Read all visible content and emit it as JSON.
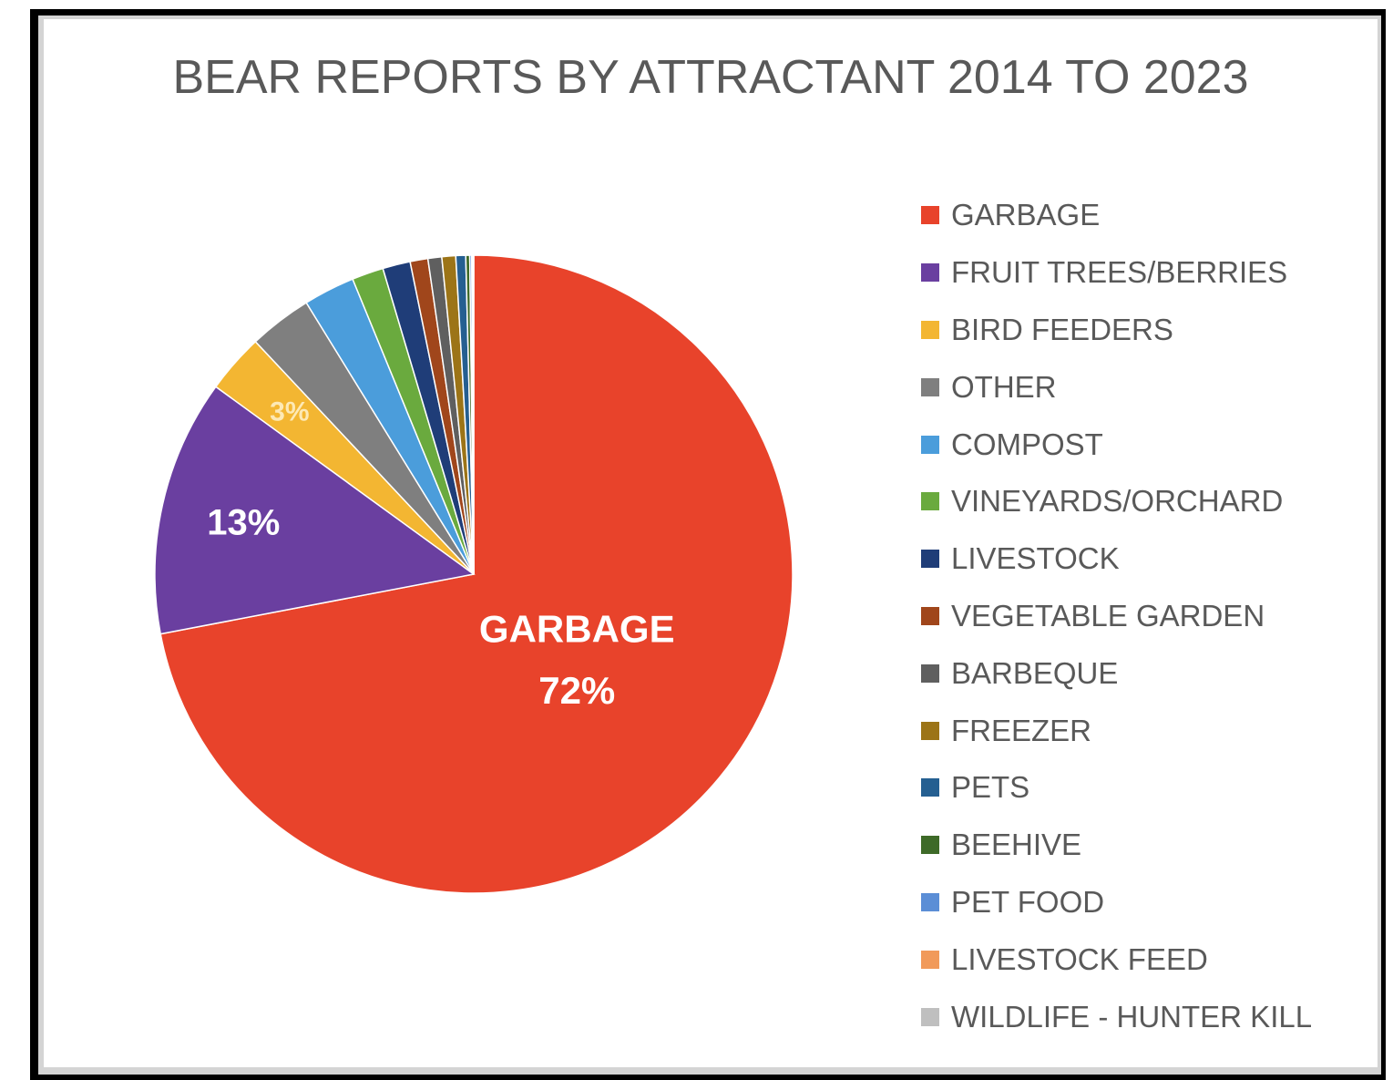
{
  "chart_data": {
    "type": "pie",
    "title": "BEAR REPORTS BY ATTRACTANT 2014 TO 2023",
    "unit": "%",
    "slices": [
      {
        "label": "GARBAGE",
        "value": 72,
        "color": "#e8432b"
      },
      {
        "label": "FRUIT TREES/BERRIES",
        "value": 13,
        "color": "#6a3fa0"
      },
      {
        "label": "BIRD FEEDERS",
        "value": 3,
        "color": "#f3b632"
      },
      {
        "label": "OTHER",
        "value": 3.2,
        "color": "#7f7f7f"
      },
      {
        "label": "COMPOST",
        "value": 2.6,
        "color": "#4b9ddb"
      },
      {
        "label": "VINEYARDS/ORCHARD",
        "value": 1.6,
        "color": "#6aaa3e"
      },
      {
        "label": "LIVESTOCK",
        "value": 1.4,
        "color": "#1f3d78"
      },
      {
        "label": "VEGETABLE GARDEN",
        "value": 0.9,
        "color": "#a0461b"
      },
      {
        "label": "BARBEQUE",
        "value": 0.7,
        "color": "#5f5f5f"
      },
      {
        "label": "FREEZER",
        "value": 0.7,
        "color": "#9c7417"
      },
      {
        "label": "PETS",
        "value": 0.5,
        "color": "#255f91"
      },
      {
        "label": "BEEHIVE",
        "value": 0.2,
        "color": "#3e6a28"
      },
      {
        "label": "PET FOOD",
        "value": 0.1,
        "color": "#5b8ed6"
      },
      {
        "label": "LIVESTOCK FEED",
        "value": 0.05,
        "color": "#f19a5a"
      },
      {
        "label": "WILDLIFE - HUNTER KILL",
        "value": 0.05,
        "color": "#bfbfbf"
      }
    ],
    "data_labels": [
      {
        "slice": "GARBAGE",
        "lines": [
          "GARBAGE",
          "72%"
        ]
      },
      {
        "slice": "FRUIT TREES/BERRIES",
        "lines": [
          "13%"
        ]
      },
      {
        "slice": "BIRD FEEDERS",
        "lines": [
          "3%"
        ]
      }
    ],
    "legend_position": "right"
  }
}
